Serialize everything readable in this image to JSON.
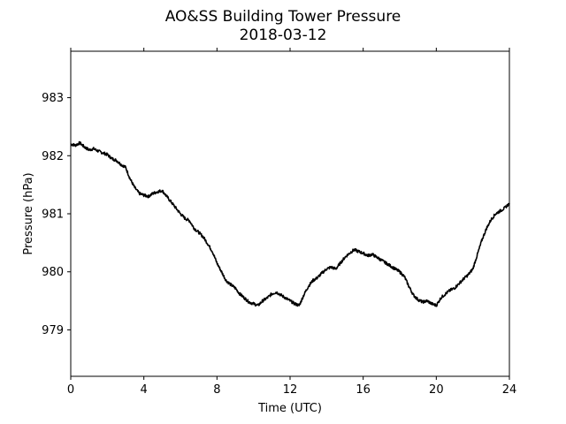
{
  "chart_data": {
    "type": "line",
    "title": "AO&SS Building Tower Pressure",
    "subtitle": "2018-03-12",
    "xlabel": "Time (UTC)",
    "ylabel": "Pressure (hPa)",
    "xlim": [
      0,
      24
    ],
    "ylim": [
      978.2,
      983.8
    ],
    "xticks": [
      0,
      4,
      8,
      12,
      16,
      20,
      24
    ],
    "yticks": [
      979,
      980,
      981,
      982,
      983
    ],
    "grid": false,
    "line_color": "#000000",
    "series": [
      {
        "x": [
          0,
          0.25,
          0.5,
          0.75,
          1.0,
          1.25,
          1.5,
          1.75,
          2.0,
          2.25,
          2.5,
          2.75,
          3.0,
          3.25,
          3.5,
          3.75,
          4.0,
          4.25,
          4.5,
          4.75,
          5.0,
          5.25,
          5.5,
          5.75,
          6.0,
          6.25,
          6.5,
          6.75,
          7.0,
          7.25,
          7.5,
          7.75,
          8.0,
          8.25,
          8.5,
          8.75,
          9.0,
          9.25,
          9.5,
          9.75,
          10.0,
          10.25,
          10.5,
          10.75,
          11.0,
          11.25,
          11.5,
          11.75,
          12.0,
          12.25,
          12.5,
          12.75,
          13.0,
          13.25,
          13.5,
          13.75,
          14.0,
          14.25,
          14.5,
          14.75,
          15.0,
          15.25,
          15.5,
          15.75,
          16.0,
          16.25,
          16.5,
          16.75,
          17.0,
          17.25,
          17.5,
          17.75,
          18.0,
          18.25,
          18.5,
          18.75,
          19.0,
          19.25,
          19.5,
          19.75,
          20.0,
          20.25,
          20.5,
          20.75,
          21.0,
          21.25,
          21.5,
          21.75,
          22.0,
          22.25,
          22.5,
          22.75,
          23.0,
          23.25,
          23.5,
          23.75,
          24.0
        ],
        "y": [
          982.2,
          982.18,
          982.22,
          982.15,
          982.1,
          982.12,
          982.08,
          982.05,
          982.02,
          981.95,
          981.92,
          981.85,
          981.8,
          981.6,
          981.45,
          981.35,
          981.32,
          981.3,
          981.35,
          981.38,
          981.4,
          981.3,
          981.2,
          981.1,
          981.0,
          980.92,
          980.88,
          980.75,
          980.68,
          980.6,
          980.48,
          980.35,
          980.15,
          980.0,
          979.85,
          979.78,
          979.72,
          979.62,
          979.55,
          979.48,
          979.45,
          979.42,
          979.5,
          979.55,
          979.62,
          979.65,
          979.6,
          979.55,
          979.5,
          979.45,
          979.42,
          979.6,
          979.75,
          979.85,
          979.9,
          979.98,
          980.05,
          980.08,
          980.05,
          980.15,
          980.25,
          980.32,
          980.38,
          980.35,
          980.32,
          980.28,
          980.3,
          980.25,
          980.2,
          980.15,
          980.1,
          980.05,
          980.0,
          979.92,
          979.75,
          979.6,
          979.52,
          979.48,
          979.5,
          979.45,
          979.42,
          979.55,
          979.62,
          979.68,
          979.72,
          979.8,
          979.88,
          979.95,
          980.05,
          980.3,
          980.55,
          980.75,
          980.9,
          981.0,
          981.05,
          981.1,
          981.18
        ]
      }
    ]
  }
}
